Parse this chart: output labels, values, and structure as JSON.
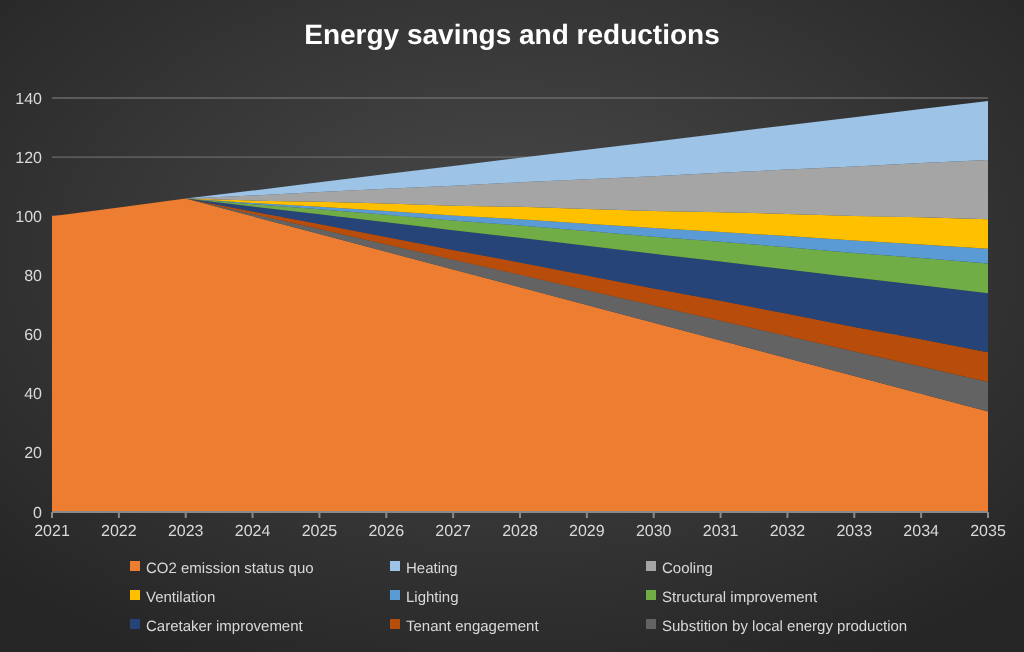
{
  "chart_data": {
    "type": "area",
    "stacked": true,
    "title": "Energy savings and reductions",
    "x": [
      2021,
      2022,
      2023,
      2024,
      2025,
      2026,
      2027,
      2028,
      2029,
      2030,
      2031,
      2032,
      2033,
      2034,
      2035
    ],
    "xlim": [
      2021,
      2035
    ],
    "xticks": [
      2021,
      2022,
      2023,
      2024,
      2025,
      2026,
      2027,
      2028,
      2029,
      2030,
      2031,
      2032,
      2033,
      2034,
      2035
    ],
    "ylim": [
      0,
      140
    ],
    "yticks": [
      0,
      20,
      40,
      60,
      80,
      100,
      120,
      140
    ],
    "grid": "y",
    "legend": "bottom",
    "series": [
      {
        "name": "CO2 emission status quo",
        "color": "#ed7d31",
        "values": [
          100,
          103,
          106,
          100,
          94,
          88,
          82,
          76,
          70,
          64,
          58,
          52,
          46,
          40,
          34
        ]
      },
      {
        "name": "Substition by local energy production",
        "color": "#636363",
        "values": [
          0,
          0,
          0,
          0.8,
          1.7,
          2.5,
          3.3,
          4.2,
          5,
          5.8,
          6.7,
          7.5,
          8.3,
          9.2,
          10
        ]
      },
      {
        "name": "Tenant engagement",
        "color": "#b84c0a",
        "values": [
          0,
          0,
          0,
          0.8,
          1.7,
          2.5,
          3.3,
          4.2,
          5,
          5.8,
          6.7,
          7.5,
          8.3,
          9.2,
          10
        ]
      },
      {
        "name": "Caretaker improvement",
        "color": "#264478",
        "values": [
          0,
          0,
          0,
          1.7,
          3.3,
          5,
          6.7,
          8.3,
          10,
          11.7,
          13.3,
          15,
          16.7,
          18.3,
          20
        ]
      },
      {
        "name": "Structural improvement",
        "color": "#70ad47",
        "values": [
          0,
          0,
          0,
          0.8,
          1.7,
          2.5,
          3.3,
          4.2,
          5,
          5.8,
          6.7,
          7.5,
          8.3,
          9.2,
          10
        ]
      },
      {
        "name": "Lighting",
        "color": "#5b9bd5",
        "values": [
          0,
          0,
          0,
          0.4,
          0.8,
          1.3,
          1.7,
          2.1,
          2.5,
          2.9,
          3.3,
          3.8,
          4.2,
          4.6,
          5
        ]
      },
      {
        "name": "Ventilation",
        "color": "#ffc000",
        "values": [
          0,
          0,
          0,
          0.8,
          1.7,
          2.5,
          3.3,
          4.2,
          5,
          5.8,
          6.7,
          7.5,
          8.3,
          9.2,
          10
        ]
      },
      {
        "name": "Cooling",
        "color": "#a5a5a5",
        "values": [
          0,
          0,
          0,
          1.7,
          3.3,
          5,
          6.7,
          8.3,
          10,
          11.7,
          13.3,
          15,
          16.7,
          18.3,
          20
        ]
      },
      {
        "name": "Heating",
        "color": "#9dc3e6",
        "values": [
          0,
          0,
          0,
          1.7,
          3.3,
          5,
          6.7,
          8.3,
          10,
          11.7,
          13.3,
          15,
          16.7,
          18.3,
          20
        ]
      }
    ]
  }
}
